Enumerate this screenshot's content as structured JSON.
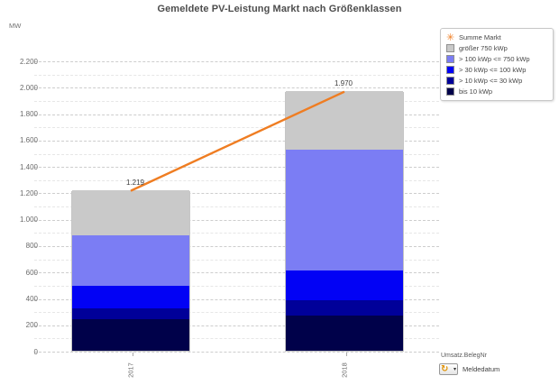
{
  "title": "Gemeldete PV-Leistung Markt nach Größenklassen",
  "y_axis": {
    "unit": "MW",
    "max": 2200,
    "major_step": 200,
    "minor_step": 100,
    "tick_labels": [
      "0",
      "200",
      "400",
      "600",
      "800",
      "1.000",
      "1.200",
      "1.400",
      "1.600",
      "1.800",
      "2.000",
      "2.200"
    ]
  },
  "legend": {
    "items": [
      {
        "label": "Summe Markt",
        "marker": "star",
        "color": "#ef7d22"
      },
      {
        "label": "größer 750 kWp",
        "marker": "square",
        "color": "#c9c9c9"
      },
      {
        "label": "> 100 kWp <= 750 kWp",
        "marker": "square",
        "color": "#7b7df4"
      },
      {
        "label": "> 30 kWp <= 100 kWp",
        "marker": "square",
        "color": "#0202f5"
      },
      {
        "label": "> 10 kWp <= 30 kWp",
        "marker": "square",
        "color": "#000099"
      },
      {
        "label": "bis 10 kWp",
        "marker": "square",
        "color": "#00014a"
      }
    ],
    "star_glyph": "✳"
  },
  "chart_data": {
    "type": "bar",
    "subtype": "stacked-bars-with-sum-line",
    "title": "Gemeldete PV-Leistung Markt nach Größenklassen",
    "xlabel": "",
    "ylabel": "MW",
    "ylim": [
      0,
      2200
    ],
    "grid": "dashed, major every 200 MW, minor every 100 MW",
    "legend_position": "top-right",
    "categories": [
      "2017",
      "2018"
    ],
    "series": [
      {
        "name": "bis 10 kWp",
        "color": "#00014a",
        "values": [
          240,
          264
        ]
      },
      {
        "name": "> 10 kWp <= 30 kWp",
        "color": "#000099",
        "values": [
          80,
          121
        ]
      },
      {
        "name": "> 30 kWp <= 100 kWp",
        "color": "#0202f5",
        "values": [
          170,
          223
        ]
      },
      {
        "name": "> 100 kWp <= 750 kWp",
        "color": "#7b7df4",
        "values": [
          387,
          918
        ]
      },
      {
        "name": "größer 750 kWp",
        "color": "#c9c9c9",
        "values": [
          342,
          444
        ]
      }
    ],
    "line_series": {
      "name": "Summe Markt",
      "color": "#ef7d22",
      "values": [
        1219,
        1970
      ]
    },
    "totals": [
      1219,
      1970
    ],
    "total_labels": [
      "1.219",
      "1.970"
    ]
  },
  "footer": {
    "dimension_label": "Umsatz.BelegNr",
    "axis_label": "Meldedatum",
    "icon": "refresh-dropdown-icon",
    "refresh_glyph": "↻",
    "caret_glyph": "▾"
  }
}
